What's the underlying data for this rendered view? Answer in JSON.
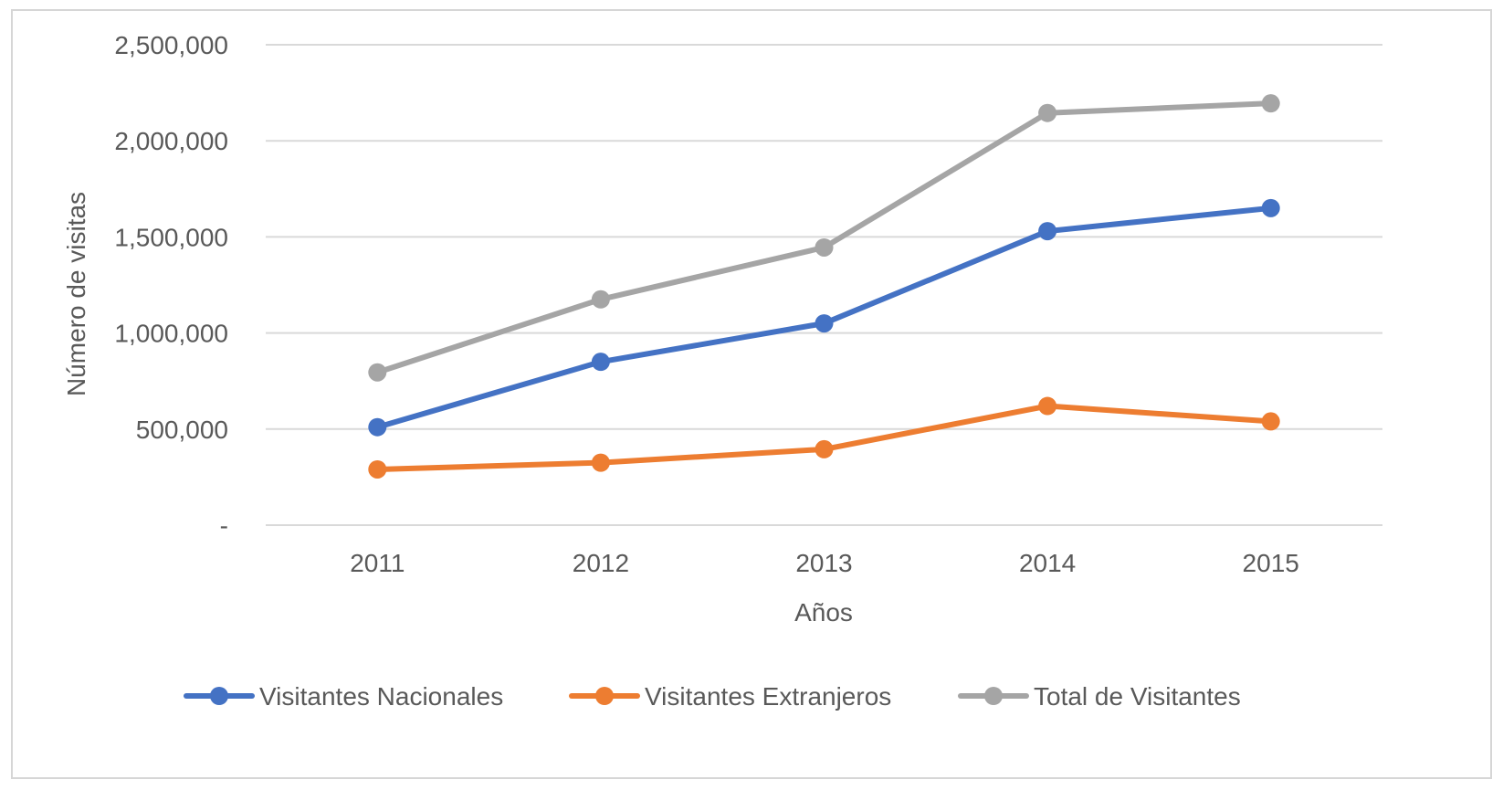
{
  "chart_data": {
    "type": "line",
    "title": "",
    "xlabel": "Años",
    "ylabel": "Número de visitas",
    "x": [
      "2011",
      "2012",
      "2013",
      "2014",
      "2015"
    ],
    "ylim": [
      0,
      2500000
    ],
    "yticks": [
      0,
      500000,
      1000000,
      1500000,
      2000000,
      2500000
    ],
    "ytick_labels": [
      "-",
      "500,000",
      "1,000,000",
      "1,500,000",
      "2,000,000",
      "2,500,000"
    ],
    "grid": true,
    "legend_position": "bottom",
    "series": [
      {
        "name": "Visitantes Nacionales",
        "color": "#4472C4",
        "values": [
          510000,
          850000,
          1050000,
          1530000,
          1650000
        ]
      },
      {
        "name": "Visitantes Extranjeros",
        "color": "#ED7D31",
        "values": [
          290000,
          325000,
          395000,
          620000,
          540000
        ]
      },
      {
        "name": "Total de Visitantes",
        "color": "#A5A5A5",
        "values": [
          795000,
          1175000,
          1445000,
          2145000,
          2195000
        ]
      }
    ]
  }
}
